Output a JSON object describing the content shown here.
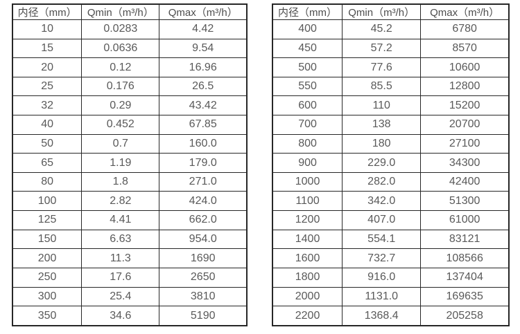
{
  "page": {
    "background": "#ffffff",
    "border_color": "#262626",
    "header_text_color": "#4d4d4d",
    "cell_text_color": "#595959"
  },
  "tables": [
    {
      "name": "flow-spec-table-small-diameters",
      "header": [
        "内径（mm）",
        "Qmin（m³/h）",
        "Qmax（m³/h）"
      ],
      "rows": [
        [
          "10",
          "0.0283",
          "4.42"
        ],
        [
          "15",
          "0.0636",
          "9.54"
        ],
        [
          "20",
          "0.12",
          "16.96"
        ],
        [
          "25",
          "0.176",
          "26.5"
        ],
        [
          "32",
          "0.29",
          "43.42"
        ],
        [
          "40",
          "0.452",
          "67.85"
        ],
        [
          "50",
          "0.7",
          "160.0"
        ],
        [
          "65",
          "1.19",
          "179.0"
        ],
        [
          "80",
          "1.8",
          "271.0"
        ],
        [
          "100",
          "2.82",
          "424.0"
        ],
        [
          "125",
          "4.41",
          "662.0"
        ],
        [
          "150",
          "6.63",
          "954.0"
        ],
        [
          "200",
          "11.3",
          "1690"
        ],
        [
          "250",
          "17.6",
          "2650"
        ],
        [
          "300",
          "25.4",
          "3810"
        ],
        [
          "350",
          "34.6",
          "5190"
        ]
      ]
    },
    {
      "name": "flow-spec-table-large-diameters",
      "header": [
        "内径（mm）",
        "Qmin（m³/h）",
        "Qmax（m³/h）"
      ],
      "rows": [
        [
          "400",
          "45.2",
          "6780"
        ],
        [
          "450",
          "57.2",
          "8570"
        ],
        [
          "500",
          "77.6",
          "10600"
        ],
        [
          "550",
          "85.5",
          "12800"
        ],
        [
          "600",
          "110",
          "15200"
        ],
        [
          "700",
          "138",
          "20700"
        ],
        [
          "800",
          "180",
          "27100"
        ],
        [
          "900",
          "229.0",
          "34300"
        ],
        [
          "1000",
          "282.0",
          "42400"
        ],
        [
          "1100",
          "342.0",
          "51300"
        ],
        [
          "1200",
          "407.0",
          "61000"
        ],
        [
          "1400",
          "554.1",
          "83121"
        ],
        [
          "1600",
          "732.7",
          "108566"
        ],
        [
          "1800",
          "916.0",
          "137404"
        ],
        [
          "2000",
          "1131.0",
          "169635"
        ],
        [
          "2200",
          "1368.4",
          "205258"
        ]
      ]
    }
  ]
}
